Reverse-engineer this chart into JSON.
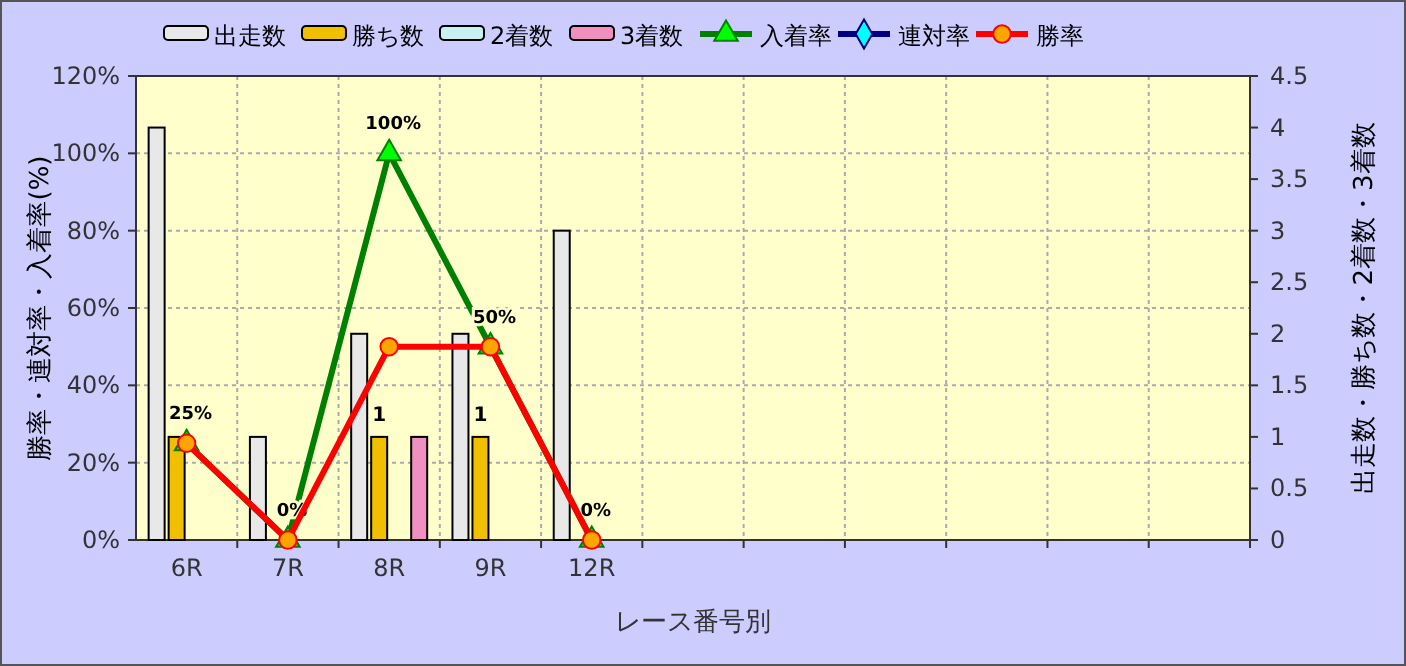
{
  "chart_data": {
    "type": "bar",
    "xlabel": "レース番号別",
    "ylabel": "勝率・連対率・入着率(%)",
    "y2label": "出走数・勝ち数・2着数・3着数",
    "categories": [
      "6R",
      "7R",
      "8R",
      "9R",
      "12R",
      null,
      null,
      null,
      null,
      null,
      null
    ],
    "series": [
      {
        "name": "出走数",
        "axis": "y2",
        "color": "#e8e8e8",
        "values": [
          4,
          1,
          2,
          2,
          3,
          null,
          null,
          null,
          null,
          null,
          null
        ]
      },
      {
        "name": "勝ち数",
        "axis": "y2",
        "color": "#f0c000",
        "values": [
          1,
          0,
          1,
          1,
          0,
          null,
          null,
          null,
          null,
          null,
          null
        ],
        "value_labels": [
          null,
          null,
          "1",
          "1",
          null,
          null,
          null,
          null,
          null,
          null,
          null
        ]
      },
      {
        "name": "2着数",
        "axis": "y2",
        "color": "#c8f0f0",
        "values": [
          0,
          0,
          0,
          0,
          0,
          null,
          null,
          null,
          null,
          null,
          null
        ]
      },
      {
        "name": "3着数",
        "axis": "y2",
        "color": "#f090c0",
        "values": [
          0,
          0,
          1,
          0,
          0,
          null,
          null,
          null,
          null,
          null,
          null
        ]
      },
      {
        "name": "入着率",
        "type": "line",
        "color": "#008000",
        "marker": "triangle",
        "values": [
          25,
          0,
          100,
          50,
          0,
          null,
          null,
          null,
          null,
          null,
          null
        ],
        "value_labels": [
          "25%",
          "0%",
          "100%",
          "50%",
          "0%",
          null,
          null,
          null,
          null,
          null,
          null
        ]
      },
      {
        "name": "連対率",
        "type": "line",
        "color": "#000080",
        "marker": "diamond",
        "values": [
          null,
          null,
          null,
          null,
          null,
          null,
          null,
          null,
          null,
          null,
          null
        ]
      },
      {
        "name": "勝率",
        "type": "line",
        "color": "#ff0000",
        "marker": "circle",
        "values": [
          25,
          0,
          50,
          50,
          0,
          null,
          null,
          null,
          null,
          null,
          null
        ]
      }
    ],
    "ylim": [
      0,
      120
    ],
    "yticks": [
      {
        "value": 0,
        "label": "0%"
      },
      {
        "value": 20,
        "label": "20%"
      },
      {
        "value": 40,
        "label": "40%"
      },
      {
        "value": 60,
        "label": "60%"
      },
      {
        "value": 80,
        "label": "80%"
      },
      {
        "value": 100,
        "label": "100%"
      },
      {
        "value": 120,
        "label": "120%"
      }
    ],
    "y2lim": [
      0,
      4.5
    ],
    "y2ticks": [
      0,
      0.5,
      1,
      1.5,
      2,
      2.5,
      3,
      3.5,
      4,
      4.5
    ],
    "grid": true,
    "legend": "top"
  }
}
